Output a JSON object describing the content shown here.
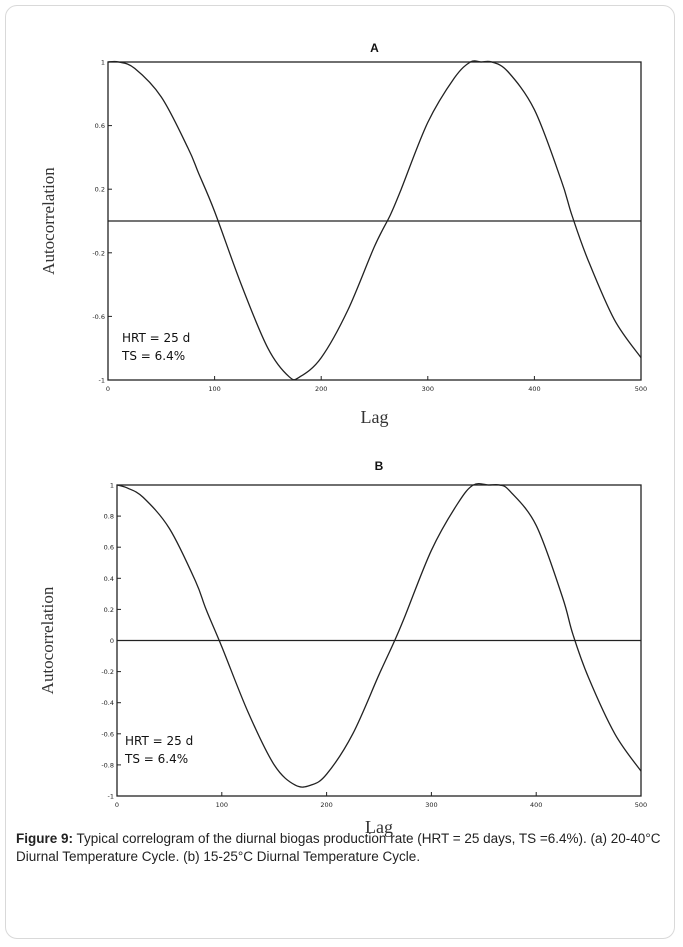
{
  "chart_data": [
    {
      "type": "line",
      "panel_label": "A",
      "xlabel": "Lag",
      "ylabel": "Autocorrelation",
      "xlim": [
        0,
        500
      ],
      "ylim": [
        -1,
        1
      ],
      "x_ticks": [
        "0",
        "100",
        "200",
        "300",
        "400",
        "500"
      ],
      "y_ticks": [
        "1",
        "0.6",
        "0.2",
        "-0.2",
        "-0.6",
        "-1"
      ],
      "y_tick_values": [
        1,
        0.6,
        0.2,
        -0.2,
        -0.6,
        -1
      ],
      "annotations": [
        "HRT = 25 d",
        "TS   = 6.4%"
      ],
      "series": [
        {
          "x": [
            0,
            10,
            25,
            50,
            75,
            85,
            100,
            125,
            150,
            170,
            180,
            200,
            225,
            250,
            265,
            275,
            300,
            325,
            340,
            350,
            360,
            375,
            400,
            425,
            435,
            450,
            475,
            500
          ],
          "values": [
            1.0,
            1.0,
            0.96,
            0.78,
            0.46,
            0.3,
            0.06,
            -0.4,
            -0.8,
            -0.98,
            -0.98,
            -0.86,
            -0.56,
            -0.16,
            0.04,
            0.2,
            0.62,
            0.9,
            1.0,
            1.0,
            1.0,
            0.94,
            0.7,
            0.26,
            0.04,
            -0.24,
            -0.62,
            -0.86
          ]
        }
      ]
    },
    {
      "type": "line",
      "panel_label": "B",
      "xlabel": "Lag",
      "ylabel": "Autocorrelation",
      "xlim": [
        0,
        500
      ],
      "ylim": [
        -1,
        1
      ],
      "x_ticks": [
        "0",
        "100",
        "200",
        "300",
        "400",
        "500"
      ],
      "y_ticks": [
        "1",
        "0.8",
        "0.6",
        "0.4",
        "0.2",
        "0",
        "-0.2",
        "-0.4",
        "-0.6",
        "-0.8",
        "-1"
      ],
      "y_tick_values": [
        1,
        0.8,
        0.6,
        0.4,
        0.2,
        0,
        -0.2,
        -0.4,
        -0.6,
        -0.8,
        -1
      ],
      "annotations": [
        "HRT = 25 d",
        "TS    = 6.4%"
      ],
      "series": [
        {
          "x": [
            0,
            10,
            25,
            50,
            75,
            85,
            100,
            125,
            150,
            170,
            185,
            200,
            225,
            250,
            265,
            275,
            300,
            325,
            340,
            355,
            365,
            375,
            400,
            425,
            435,
            450,
            475,
            500
          ],
          "values": [
            1.0,
            0.98,
            0.92,
            0.72,
            0.38,
            0.2,
            -0.04,
            -0.46,
            -0.8,
            -0.93,
            -0.93,
            -0.86,
            -0.6,
            -0.22,
            0.0,
            0.16,
            0.58,
            0.88,
            1.0,
            1.0,
            1.0,
            0.96,
            0.74,
            0.28,
            0.04,
            -0.24,
            -0.6,
            -0.84
          ]
        }
      ]
    }
  ],
  "caption": {
    "label": "Figure 9:",
    "text": " Typical correlogram of the diurnal biogas production rate (HRT = 25 days, TS =6.4%). (a) 20-40°C Diurnal Temperature Cycle. (b) 15-25°C Diurnal Temperature Cycle."
  }
}
